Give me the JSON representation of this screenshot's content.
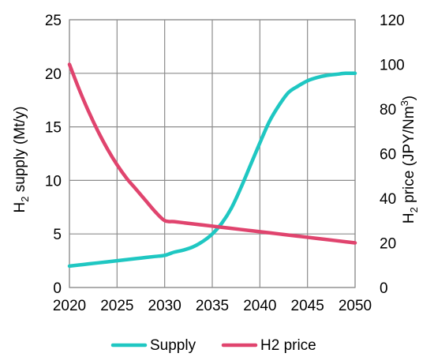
{
  "chart_data": {
    "type": "line",
    "x": [
      2020,
      2021,
      2022,
      2023,
      2024,
      2025,
      2026,
      2027,
      2028,
      2029,
      2030,
      2031,
      2032,
      2033,
      2034,
      2035,
      2036,
      2037,
      2038,
      2039,
      2040,
      2041,
      2042,
      2043,
      2044,
      2045,
      2046,
      2047,
      2048,
      2049,
      2050
    ],
    "xlim": [
      2020,
      2050
    ],
    "xticks": [
      "2020",
      "2025",
      "2030",
      "2035",
      "2040",
      "2045",
      "2050"
    ],
    "ylim_left": [
      0,
      25
    ],
    "yticks_left": [
      "0",
      "5",
      "10",
      "15",
      "20",
      "25"
    ],
    "ylabel_left": {
      "base": "H",
      "sub": "2",
      "rest": " supply (Mt/y)"
    },
    "ylim_right": [
      0,
      120
    ],
    "yticks_right": [
      "0",
      "20",
      "40",
      "60",
      "80",
      "100",
      "120"
    ],
    "ylabel_right": {
      "base": "H",
      "sub": "2",
      "rest": " price (JPY/Nm",
      "sup": "3",
      "end": ")"
    },
    "grid": true,
    "legend_position": "bottom",
    "series": [
      {
        "name": "Supply",
        "axis": "left",
        "color": "#1fc7c2",
        "values": [
          2.0,
          2.1,
          2.2,
          2.3,
          2.4,
          2.5,
          2.6,
          2.7,
          2.8,
          2.9,
          3.0,
          3.3,
          3.5,
          3.8,
          4.3,
          5.0,
          6.0,
          7.4,
          9.3,
          11.4,
          13.5,
          15.5,
          17.0,
          18.2,
          18.8,
          19.3,
          19.6,
          19.8,
          19.9,
          20.0,
          20.0
        ]
      },
      {
        "name": "H2 price",
        "axis": "right",
        "color": "#e0446e",
        "values": [
          100,
          89,
          79,
          70,
          62,
          55,
          49,
          44,
          39,
          34,
          30,
          29.5,
          29,
          28.5,
          28,
          27.5,
          27,
          26.5,
          26,
          25.5,
          25,
          24.5,
          24,
          23.5,
          23,
          22.5,
          22,
          21.5,
          21,
          20.5,
          20
        ]
      }
    ]
  }
}
